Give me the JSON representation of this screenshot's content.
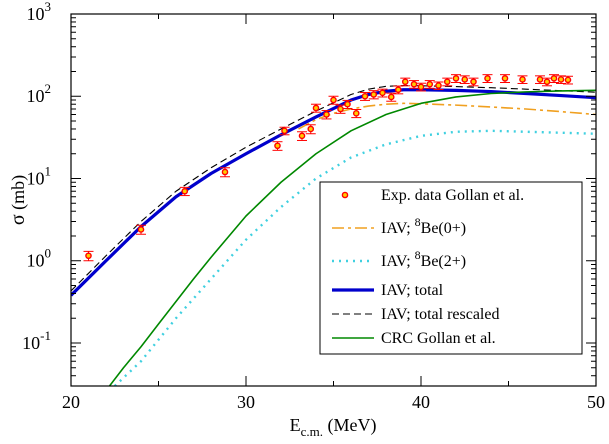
{
  "chart_data": {
    "type": "line",
    "xlabel": "E",
    "xlabel_sub": "c.m.",
    "xlabel_unit": " (MeV)",
    "ylabel_sym": "σ",
    "ylabel_unit": " (mb)",
    "xlim": [
      20,
      50
    ],
    "ylim": [
      0.03,
      1000
    ],
    "yscale": "log",
    "x_ticks": [
      {
        "v": 20,
        "label": "20"
      },
      {
        "v": 30,
        "label": "30"
      },
      {
        "v": 40,
        "label": "40"
      },
      {
        "v": 50,
        "label": "50"
      }
    ],
    "y_ticks": [
      {
        "v": 0.1,
        "base": "10",
        "exp": "-1"
      },
      {
        "v": 1,
        "base": "10",
        "exp": "0"
      },
      {
        "v": 10,
        "base": "10",
        "exp": "1"
      },
      {
        "v": 100,
        "base": "10",
        "exp": "2"
      },
      {
        "v": 1000,
        "base": "10",
        "exp": "3"
      }
    ],
    "legend_position": "bottom-right",
    "data_points": {
      "name": "Exp. data Gollan et al.",
      "color": "#ff0000",
      "x": [
        21.0,
        24.0,
        26.5,
        28.8,
        31.8,
        32.2,
        33.2,
        33.7,
        34.0,
        34.6,
        35.0,
        35.4,
        35.8,
        36.3,
        36.8,
        37.3,
        37.8,
        38.3,
        38.7,
        39.1,
        39.6,
        40.0,
        40.5,
        41.0,
        41.5,
        42.0,
        42.5,
        43.0,
        43.8,
        44.8,
        45.8,
        46.8,
        47.2,
        47.6,
        48.0,
        48.4
      ],
      "y": [
        1.15,
        2.4,
        7.0,
        12.0,
        25.0,
        38.0,
        33.0,
        40.0,
        72.0,
        60.0,
        90.0,
        70.0,
        80.0,
        62.0,
        100.0,
        105.0,
        110.0,
        98.0,
        120.0,
        150.0,
        140.0,
        130.0,
        140.0,
        135.0,
        150.0,
        165.0,
        160.0,
        150.0,
        165.0,
        165.0,
        160.0,
        160.0,
        150.0,
        165.0,
        160.0,
        158.0
      ],
      "err": [
        0.15,
        0.3,
        0.8,
        1.5,
        3.0,
        4.0,
        4.0,
        5.0,
        8.0,
        7.0,
        10.0,
        8.0,
        9.0,
        7.0,
        11.0,
        12.0,
        12.0,
        11.0,
        13.0,
        16.0,
        15.0,
        14.0,
        15.0,
        14.0,
        16.0,
        18.0,
        17.0,
        16.0,
        18.0,
        18.0,
        17.0,
        17.0,
        16.0,
        18.0,
        17.0,
        17.0
      ]
    },
    "series": [
      {
        "name": "IAV; ⁸Be(0+)",
        "label_parts": [
          "IAV; ",
          "8",
          "Be(0+)"
        ],
        "color": "#f0a020",
        "dash": "12,4,3,4",
        "width": 1.6,
        "x": [
          33.0,
          34.0,
          35.0,
          36.0,
          37.0,
          38.0,
          39.0,
          40.0,
          42.0,
          44.0,
          46.0,
          48.0,
          50.0
        ],
        "y": [
          40,
          52,
          62,
          70,
          76,
          80,
          82,
          81,
          78,
          74,
          70,
          65,
          60
        ]
      },
      {
        "name": "IAV; ⁸Be(2+)",
        "label_parts": [
          "IAV; ",
          "8",
          "Be(2+)"
        ],
        "color": "#40d0e0",
        "dash": "2,5",
        "width": 2.4,
        "x": [
          22.5,
          24.0,
          26.0,
          28.0,
          30.0,
          32.0,
          34.0,
          36.0,
          38.0,
          40.0,
          42.0,
          44.0,
          46.0,
          48.0,
          50.0
        ],
        "y": [
          0.03,
          0.06,
          0.2,
          0.6,
          1.8,
          4.5,
          10,
          18,
          26,
          33,
          37,
          38,
          37,
          36,
          35
        ]
      },
      {
        "name": "IAV; total",
        "label_parts": [
          "IAV; total"
        ],
        "color": "#0000cc",
        "dash": "",
        "width": 3.2,
        "x": [
          20.0,
          22.0,
          24.0,
          26.0,
          28.0,
          30.0,
          32.0,
          34.0,
          36.0,
          37.0,
          38.0,
          39.0,
          40.0,
          42.0,
          44.0,
          46.0,
          48.0,
          50.0
        ],
        "y": [
          0.38,
          1.0,
          2.6,
          6.0,
          11.5,
          20,
          34,
          56,
          90,
          105,
          115,
          120,
          120,
          118,
          114,
          108,
          102,
          96
        ]
      },
      {
        "name": "IAV; total rescaled",
        "label_parts": [
          "IAV; total rescaled"
        ],
        "color": "#000000",
        "dash": "7,4",
        "width": 1.1,
        "x": [
          20.0,
          22.0,
          24.0,
          26.0,
          28.0,
          30.0,
          32.0,
          34.0,
          36.0,
          37.0,
          38.0,
          39.0,
          40.0,
          42.0,
          44.0,
          46.0,
          48.0,
          50.0
        ],
        "y": [
          0.43,
          1.15,
          3.0,
          7.0,
          13.5,
          24,
          40,
          66,
          105,
          122,
          132,
          135,
          134,
          131,
          127,
          122,
          117,
          112
        ]
      },
      {
        "name": "CRC Gollan et al.",
        "label_parts": [
          "CRC Gollan et al."
        ],
        "color": "#008800",
        "dash": "",
        "width": 1.6,
        "x": [
          22.2,
          23.0,
          24.0,
          25.0,
          26.0,
          27.0,
          28.0,
          30.0,
          32.0,
          34.0,
          36.0,
          38.0,
          40.0,
          42.0,
          44.0,
          46.0,
          48.0,
          50.0
        ],
        "y": [
          0.03,
          0.05,
          0.09,
          0.17,
          0.32,
          0.6,
          1.1,
          3.5,
          9,
          20,
          38,
          60,
          82,
          98,
          108,
          113,
          116,
          118
        ]
      }
    ]
  }
}
